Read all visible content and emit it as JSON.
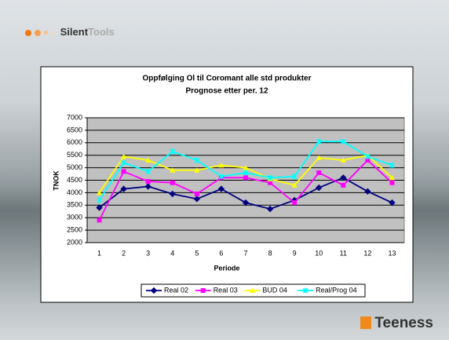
{
  "header": {
    "brand_bold": "Silent",
    "brand_light": "Tools"
  },
  "footer": {
    "brand": "Teeness"
  },
  "chart_data": {
    "type": "line",
    "title": "Oppfølging Ol til Coromant alle std produkter",
    "subtitle": "Prognose etter per. 12",
    "x_label": "Periode",
    "y_label": "TNOK",
    "categories": [
      "1",
      "2",
      "3",
      "4",
      "5",
      "6",
      "7",
      "8",
      "9",
      "10",
      "11",
      "12",
      "13"
    ],
    "series": [
      {
        "name": "Real 02",
        "color": "#000080",
        "marker": "diamond",
        "values": [
          3400,
          4150,
          4250,
          3950,
          3750,
          4150,
          3600,
          3350,
          3700,
          4200,
          4600,
          4050,
          3600
        ]
      },
      {
        "name": "Real 03",
        "color": "#ff00ff",
        "marker": "square",
        "values": [
          2900,
          4850,
          4450,
          4400,
          3950,
          4600,
          4600,
          4400,
          3600,
          4800,
          4300,
          5300,
          4400
        ]
      },
      {
        "name": "BUD 04",
        "color": "#ffff00",
        "marker": "triangle",
        "values": [
          4000,
          5450,
          5300,
          4900,
          4900,
          5100,
          5000,
          4550,
          4300,
          5400,
          5300,
          5500,
          4600
        ]
      },
      {
        "name": "Real/Prog 04",
        "color": "#00ffff",
        "marker": "star",
        "values": [
          3700,
          5200,
          4850,
          5650,
          5300,
          4650,
          4800,
          4600,
          4650,
          6050,
          6050,
          5450,
          5100
        ]
      }
    ],
    "ylim": [
      2000,
      7000
    ],
    "yticks": [
      2000,
      2500,
      3000,
      3500,
      4000,
      4500,
      5000,
      5500,
      6000,
      6500,
      7000
    ],
    "grid": true,
    "legend": "bottom"
  }
}
